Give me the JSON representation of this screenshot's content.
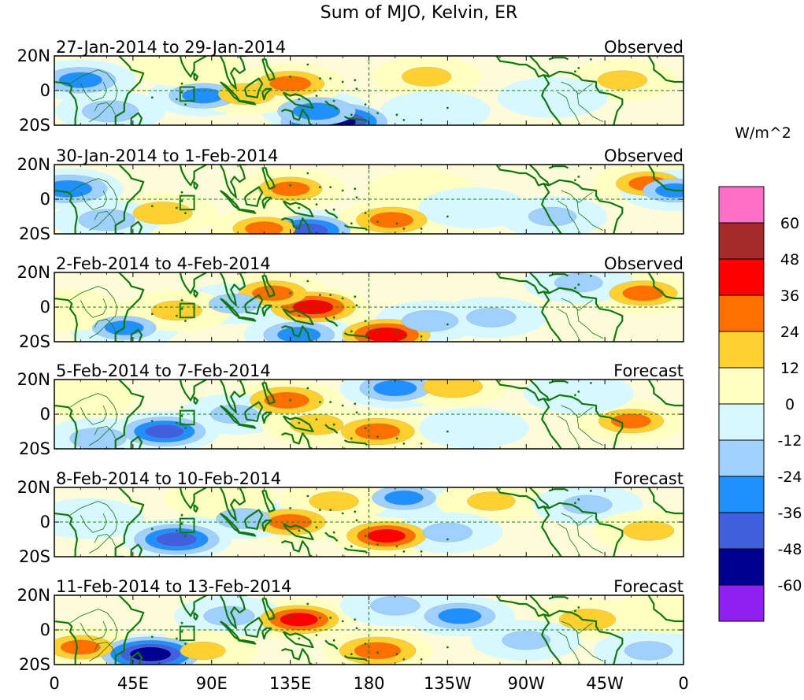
{
  "chart_data": {
    "type": "heatmap",
    "title": "Sum of MJO, Kelvin, ER",
    "units": "W/m^2",
    "lat_range": [
      -20,
      20
    ],
    "lon_range": [
      0,
      360
    ],
    "y_ticks": [
      "20N",
      "0",
      "20S"
    ],
    "x_ticks": [
      "0",
      "45E",
      "90E",
      "135E",
      "180",
      "135W",
      "90W",
      "45W",
      "0"
    ],
    "colorbar_levels": [
      "60",
      "48",
      "36",
      "24",
      "12",
      "0",
      "-12",
      "-24",
      "-36",
      "-48",
      "-60"
    ],
    "colorbar_colors": [
      "#ff6ec7",
      "#a52a2a",
      "#ff0000",
      "#ff7000",
      "#ffd030",
      "#ffffc0",
      "#d8f8ff",
      "#a0d0ff",
      "#2090ff",
      "#4060e0",
      "#000090",
      "#9020f0"
    ],
    "panels": [
      {
        "date_range": "27-Jan-2014 to 29-Jan-2014",
        "kind": "Observed",
        "anomalies": [
          {
            "lon": 160,
            "lat": -18,
            "value": -55
          },
          {
            "lon": 150,
            "lat": -12,
            "value": -35
          },
          {
            "lon": 15,
            "lat": 6,
            "value": -30
          },
          {
            "lon": 32,
            "lat": -12,
            "value": -20
          },
          {
            "lon": 85,
            "lat": -3,
            "value": -28
          },
          {
            "lon": 135,
            "lat": 4,
            "value": 28
          },
          {
            "lon": 110,
            "lat": -2,
            "value": 20
          },
          {
            "lon": 213,
            "lat": 8,
            "value": 15
          },
          {
            "lon": 325,
            "lat": 6,
            "value": 15
          },
          {
            "lon": 285,
            "lat": -4,
            "value": -12
          },
          {
            "lon": 218,
            "lat": -12,
            "value": -10
          },
          {
            "lon": 75,
            "lat": 14,
            "value": 10
          }
        ]
      },
      {
        "date_range": "30-Jan-2014 to 1-Feb-2014",
        "kind": "Observed",
        "anomalies": [
          {
            "lon": 8,
            "lat": 6,
            "value": -35
          },
          {
            "lon": 62,
            "lat": -8,
            "value": 22
          },
          {
            "lon": 135,
            "lat": 6,
            "value": 25
          },
          {
            "lon": 145,
            "lat": -18,
            "value": -40
          },
          {
            "lon": 120,
            "lat": -17,
            "value": 24
          },
          {
            "lon": 193,
            "lat": -12,
            "value": 30
          },
          {
            "lon": 340,
            "lat": 9,
            "value": 26
          },
          {
            "lon": 355,
            "lat": 5,
            "value": -25
          },
          {
            "lon": 30,
            "lat": -12,
            "value": -20
          },
          {
            "lon": 210,
            "lat": 5,
            "value": 8
          },
          {
            "lon": 285,
            "lat": -10,
            "value": -14
          },
          {
            "lon": 240,
            "lat": -5,
            "value": -10
          }
        ]
      },
      {
        "date_range": "2-Feb-2014 to 4-Feb-2014",
        "kind": "Observed",
        "anomalies": [
          {
            "lon": 148,
            "lat": 0,
            "value": 40
          },
          {
            "lon": 125,
            "lat": 8,
            "value": 28
          },
          {
            "lon": 190,
            "lat": -16,
            "value": 42
          },
          {
            "lon": 140,
            "lat": -16,
            "value": -30
          },
          {
            "lon": 337,
            "lat": 8,
            "value": 28
          },
          {
            "lon": 40,
            "lat": -12,
            "value": -25
          },
          {
            "lon": 103,
            "lat": 2,
            "value": -16
          },
          {
            "lon": 250,
            "lat": -6,
            "value": -15
          },
          {
            "lon": 215,
            "lat": -8,
            "value": -20
          },
          {
            "lon": 300,
            "lat": 14,
            "value": -14
          },
          {
            "lon": 70,
            "lat": -2,
            "value": 16
          },
          {
            "lon": 8,
            "lat": -2,
            "value": 10
          }
        ]
      },
      {
        "date_range": "5-Feb-2014 to 7-Feb-2014",
        "kind": "Forecast",
        "anomalies": [
          {
            "lon": 133,
            "lat": 8,
            "value": 32
          },
          {
            "lon": 185,
            "lat": -10,
            "value": 32
          },
          {
            "lon": 63,
            "lat": -10,
            "value": -38
          },
          {
            "lon": 195,
            "lat": 15,
            "value": -30
          },
          {
            "lon": 228,
            "lat": 16,
            "value": 22
          },
          {
            "lon": 330,
            "lat": -4,
            "value": 26
          },
          {
            "lon": 103,
            "lat": 0,
            "value": -14
          },
          {
            "lon": 150,
            "lat": -6,
            "value": 18
          },
          {
            "lon": 240,
            "lat": -8,
            "value": -12
          },
          {
            "lon": 25,
            "lat": -14,
            "value": -20
          },
          {
            "lon": 300,
            "lat": 12,
            "value": -12
          },
          {
            "lon": 15,
            "lat": 10,
            "value": 8
          }
        ]
      },
      {
        "date_range": "8-Feb-2014 to 10-Feb-2014",
        "kind": "Forecast",
        "anomalies": [
          {
            "lon": 70,
            "lat": -10,
            "value": -40
          },
          {
            "lon": 135,
            "lat": 0,
            "value": 30
          },
          {
            "lon": 190,
            "lat": -8,
            "value": 36
          },
          {
            "lon": 200,
            "lat": 14,
            "value": -25
          },
          {
            "lon": 250,
            "lat": 12,
            "value": 14
          },
          {
            "lon": 108,
            "lat": 2,
            "value": -18
          },
          {
            "lon": 225,
            "lat": -6,
            "value": -15
          },
          {
            "lon": 305,
            "lat": 10,
            "value": -15
          },
          {
            "lon": 340,
            "lat": -5,
            "value": 16
          },
          {
            "lon": 160,
            "lat": 12,
            "value": 15
          },
          {
            "lon": 20,
            "lat": 2,
            "value": -12
          },
          {
            "lon": 95,
            "lat": 14,
            "value": 10
          }
        ]
      },
      {
        "date_range": "11-Feb-2014 to 13-Feb-2014",
        "kind": "Forecast",
        "anomalies": [
          {
            "lon": 55,
            "lat": -14,
            "value": -50
          },
          {
            "lon": 140,
            "lat": 6,
            "value": 36
          },
          {
            "lon": 185,
            "lat": -12,
            "value": 34
          },
          {
            "lon": 232,
            "lat": 8,
            "value": -30
          },
          {
            "lon": 15,
            "lat": -10,
            "value": 26
          },
          {
            "lon": 305,
            "lat": 6,
            "value": 20
          },
          {
            "lon": 100,
            "lat": 8,
            "value": -16
          },
          {
            "lon": 270,
            "lat": -6,
            "value": -14
          },
          {
            "lon": 85,
            "lat": -12,
            "value": 12
          },
          {
            "lon": 195,
            "lat": 14,
            "value": -15
          },
          {
            "lon": 340,
            "lat": -12,
            "value": -14
          },
          {
            "lon": 350,
            "lat": 10,
            "value": 8
          }
        ]
      }
    ]
  }
}
